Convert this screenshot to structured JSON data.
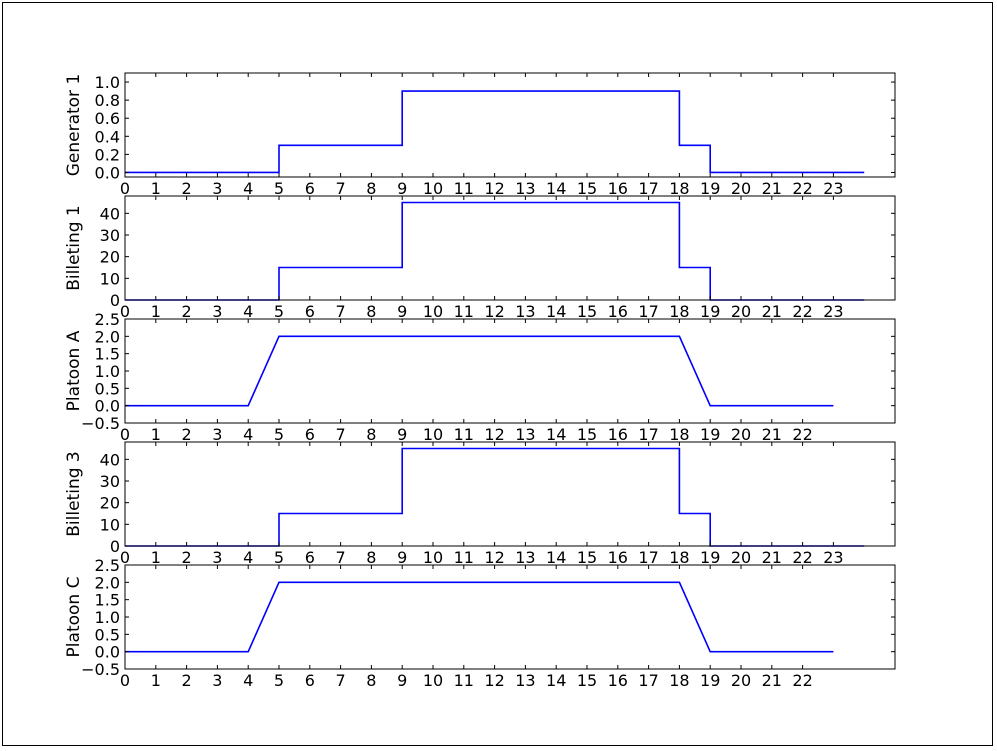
{
  "chart_data": [
    {
      "type": "line",
      "step": "post",
      "ylabel": "Generator 1",
      "xlim": [
        0,
        25
      ],
      "ylim": [
        -0.05,
        1.1
      ],
      "xticks": [
        "0",
        "1",
        "2",
        "3",
        "4",
        "5",
        "6",
        "7",
        "8",
        "9",
        "10",
        "11",
        "12",
        "13",
        "14",
        "15",
        "16",
        "17",
        "18",
        "19",
        "20",
        "21",
        "22",
        "23"
      ],
      "yticks": [
        "0.0",
        "0.2",
        "0.4",
        "0.6",
        "0.8",
        "1.0"
      ],
      "ytick_values": [
        0,
        0.2,
        0.4,
        0.6,
        0.8,
        1.0
      ],
      "x": [
        0,
        1,
        2,
        3,
        4,
        5,
        6,
        7,
        8,
        9,
        10,
        11,
        12,
        13,
        14,
        15,
        16,
        17,
        18,
        19,
        20,
        21,
        22,
        23,
        24
      ],
      "y": [
        0,
        0,
        0,
        0,
        0,
        0.3,
        0.3,
        0.3,
        0.3,
        0.9,
        0.9,
        0.9,
        0.9,
        0.9,
        0.9,
        0.9,
        0.9,
        0.9,
        0.3,
        0,
        0,
        0,
        0,
        0,
        0
      ],
      "color": "#0000ff"
    },
    {
      "type": "line",
      "step": "post",
      "ylabel": "Billeting 1",
      "xlim": [
        0,
        25
      ],
      "ylim": [
        0,
        48
      ],
      "xticks": [
        "0",
        "1",
        "2",
        "3",
        "4",
        "5",
        "6",
        "7",
        "8",
        "9",
        "10",
        "11",
        "12",
        "13",
        "14",
        "15",
        "16",
        "17",
        "18",
        "19",
        "20",
        "21",
        "22",
        "23"
      ],
      "yticks": [
        "0",
        "10",
        "20",
        "30",
        "40"
      ],
      "ytick_values": [
        0,
        10,
        20,
        30,
        40
      ],
      "x": [
        0,
        1,
        2,
        3,
        4,
        5,
        6,
        7,
        8,
        9,
        10,
        11,
        12,
        13,
        14,
        15,
        16,
        17,
        18,
        19,
        20,
        21,
        22,
        23,
        24
      ],
      "y": [
        0,
        0,
        0,
        0,
        0,
        15,
        15,
        15,
        15,
        45,
        45,
        45,
        45,
        45,
        45,
        45,
        45,
        45,
        15,
        0,
        0,
        0,
        0,
        0,
        0
      ],
      "color": "#0000ff"
    },
    {
      "type": "line",
      "step": "none",
      "ylabel": "Platoon A",
      "xlim": [
        0,
        25
      ],
      "ylim": [
        -0.5,
        2.5
      ],
      "xticks": [
        "0",
        "1",
        "2",
        "3",
        "4",
        "5",
        "6",
        "7",
        "8",
        "9",
        "10",
        "11",
        "12",
        "13",
        "14",
        "15",
        "16",
        "17",
        "18",
        "19",
        "20",
        "21",
        "22"
      ],
      "yticks": [
        "−0.5",
        "0.0",
        "0.5",
        "1.0",
        "1.5",
        "2.0",
        "2.5"
      ],
      "ytick_values": [
        -0.5,
        0,
        0.5,
        1.0,
        1.5,
        2.0,
        2.5
      ],
      "x": [
        0,
        1,
        2,
        3,
        4,
        5,
        6,
        7,
        8,
        9,
        10,
        11,
        12,
        13,
        14,
        15,
        16,
        17,
        18,
        19,
        20,
        21,
        22,
        23
      ],
      "y": [
        0,
        0,
        0,
        0,
        0,
        2,
        2,
        2,
        2,
        2,
        2,
        2,
        2,
        2,
        2,
        2,
        2,
        2,
        2,
        0,
        0,
        0,
        0,
        0
      ],
      "color": "#0000ff"
    },
    {
      "type": "line",
      "step": "post",
      "ylabel": "Billeting 3",
      "xlim": [
        0,
        25
      ],
      "ylim": [
        0,
        48
      ],
      "xticks": [
        "0",
        "1",
        "2",
        "3",
        "4",
        "5",
        "6",
        "7",
        "8",
        "9",
        "10",
        "11",
        "12",
        "13",
        "14",
        "15",
        "16",
        "17",
        "18",
        "19",
        "20",
        "21",
        "22",
        "23"
      ],
      "yticks": [
        "0",
        "10",
        "20",
        "30",
        "40"
      ],
      "ytick_values": [
        0,
        10,
        20,
        30,
        40
      ],
      "x": [
        0,
        1,
        2,
        3,
        4,
        5,
        6,
        7,
        8,
        9,
        10,
        11,
        12,
        13,
        14,
        15,
        16,
        17,
        18,
        19,
        20,
        21,
        22,
        23,
        24
      ],
      "y": [
        0,
        0,
        0,
        0,
        0,
        15,
        15,
        15,
        15,
        45,
        45,
        45,
        45,
        45,
        45,
        45,
        45,
        45,
        15,
        0,
        0,
        0,
        0,
        0,
        0
      ],
      "color": "#0000ff"
    },
    {
      "type": "line",
      "step": "none",
      "ylabel": "Platoon C",
      "xlim": [
        0,
        25
      ],
      "ylim": [
        -0.5,
        2.5
      ],
      "xticks": [
        "0",
        "1",
        "2",
        "3",
        "4",
        "5",
        "6",
        "7",
        "8",
        "9",
        "10",
        "11",
        "12",
        "13",
        "14",
        "15",
        "16",
        "17",
        "18",
        "19",
        "20",
        "21",
        "22"
      ],
      "yticks": [
        "−0.5",
        "0.0",
        "0.5",
        "1.0",
        "1.5",
        "2.0",
        "2.5"
      ],
      "ytick_values": [
        -0.5,
        0,
        0.5,
        1.0,
        1.5,
        2.0,
        2.5
      ],
      "x": [
        0,
        1,
        2,
        3,
        4,
        5,
        6,
        7,
        8,
        9,
        10,
        11,
        12,
        13,
        14,
        15,
        16,
        17,
        18,
        19,
        20,
        21,
        22,
        23
      ],
      "y": [
        0,
        0,
        0,
        0,
        0,
        2,
        2,
        2,
        2,
        2,
        2,
        2,
        2,
        2,
        2,
        2,
        2,
        2,
        2,
        0,
        0,
        0,
        0,
        0
      ],
      "color": "#0000ff"
    }
  ]
}
